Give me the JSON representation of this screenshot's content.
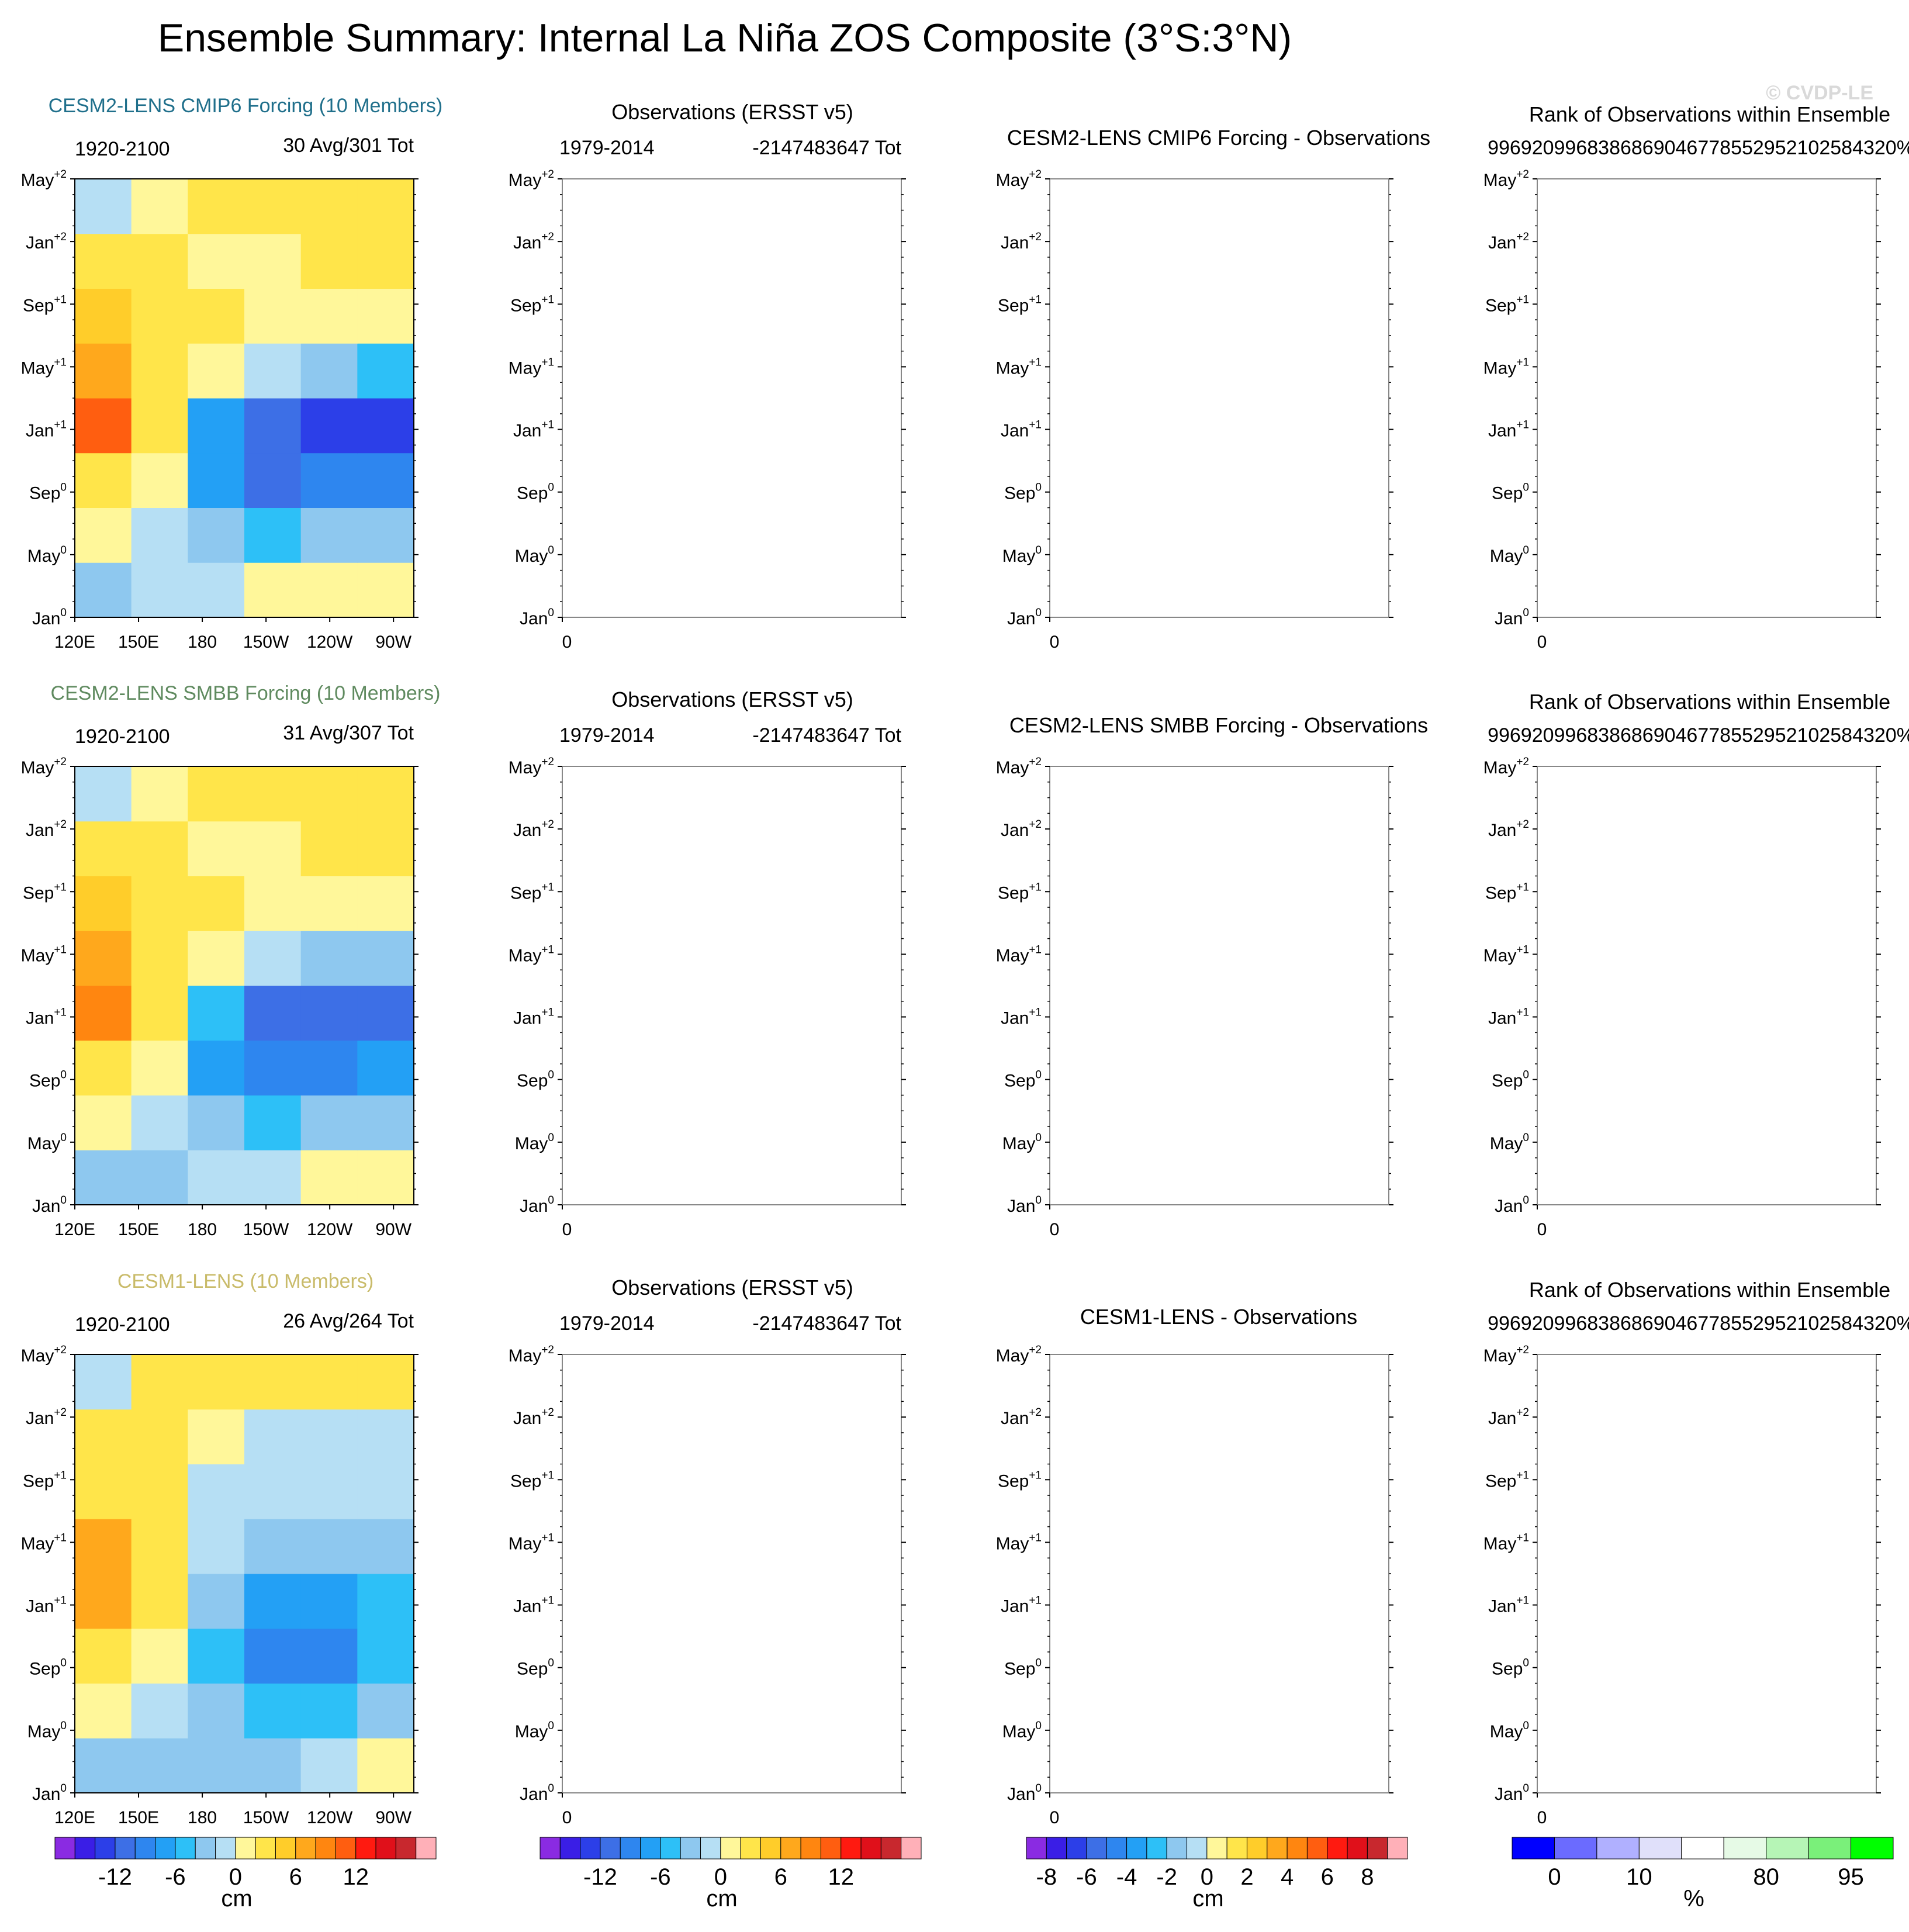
{
  "title": "Ensemble Summary: Internal La Niña ZOS Composite (3°S:3°N)",
  "watermark": "© CVDP-LE",
  "y_ticks": [
    {
      "m": "May",
      "s": "+2"
    },
    {
      "m": "Jan",
      "s": "+2"
    },
    {
      "m": "Sep",
      "s": "+1"
    },
    {
      "m": "May",
      "s": "+1"
    },
    {
      "m": "Jan",
      "s": "+1"
    },
    {
      "m": "Sep",
      "s": "0"
    },
    {
      "m": "May",
      "s": "0"
    },
    {
      "m": "Jan",
      "s": "0"
    }
  ],
  "x_ticks_model": [
    "120E",
    "150E",
    "180",
    "150W",
    "120W",
    "90W"
  ],
  "x_tick_obs": "0",
  "rows": [
    {
      "model": {
        "title": "CESM2-LENS CMIP6 Forcing (10 Members)",
        "color": "#1f6f8b",
        "years": "1920-2100",
        "count": "30 Avg/301 Tot"
      },
      "obs": {
        "title": "Observations (ERSST v5)",
        "years": "1979-2014",
        "count": "-2147483647 Tot"
      },
      "diff": {
        "title": "CESM2-LENS CMIP6 Forcing - Observations"
      },
      "rank": {
        "title": "Rank of Observations within Ensemble",
        "value": "9969209968386869046778552952102584320%"
      }
    },
    {
      "model": {
        "title": "CESM2-LENS SMBB Forcing (10 Members)",
        "color": "#5f8a5f",
        "years": "1920-2100",
        "count": "31 Avg/307 Tot"
      },
      "obs": {
        "title": "Observations (ERSST v5)",
        "years": "1979-2014",
        "count": "-2147483647 Tot"
      },
      "diff": {
        "title": "CESM2-LENS SMBB Forcing - Observations"
      },
      "rank": {
        "title": "Rank of Observations within Ensemble",
        "value": "9969209968386869046778552952102584320%"
      }
    },
    {
      "model": {
        "title": "CESM1-LENS (10 Members)",
        "color": "#c9bb6a",
        "years": "1920-2100",
        "count": "26 Avg/264 Tot"
      },
      "obs": {
        "title": "Observations (ERSST v5)",
        "years": "1979-2014",
        "count": "-2147483647 Tot"
      },
      "diff": {
        "title": "CESM1-LENS - Observations"
      },
      "rank": {
        "title": "Rank of Observations within Ensemble",
        "value": "9969209968386869046778552952102584320%"
      }
    }
  ],
  "colorbars": [
    {
      "colors": [
        "#8a2be2",
        "#3a1ee6",
        "#2c3fe8",
        "#3d6fe6",
        "#2e86ef",
        "#23a0f5",
        "#2dc0f7",
        "#8ec8ef",
        "#b6dff4",
        "#fff79a",
        "#ffe54a",
        "#ffcd2a",
        "#ffa81c",
        "#ff8610",
        "#ff5e10",
        "#ff1a10",
        "#e0101a",
        "#c8282e",
        "#ffb0b8"
      ],
      "labels": [
        "-12",
        "-6",
        "0",
        "6",
        "12"
      ],
      "label_idx": [
        2,
        5,
        8,
        11,
        14
      ],
      "units": "cm"
    },
    {
      "colors": [
        "#8a2be2",
        "#3a1ee6",
        "#2c3fe8",
        "#3d6fe6",
        "#2e86ef",
        "#23a0f5",
        "#2dc0f7",
        "#8ec8ef",
        "#b6dff4",
        "#fff79a",
        "#ffe54a",
        "#ffcd2a",
        "#ffa81c",
        "#ff8610",
        "#ff5e10",
        "#ff1a10",
        "#e0101a",
        "#c8282e",
        "#ffb0b8"
      ],
      "labels": [
        "-12",
        "-6",
        "0",
        "6",
        "12"
      ],
      "label_idx": [
        2,
        5,
        8,
        11,
        14
      ],
      "units": "cm"
    },
    {
      "colors": [
        "#8a2be2",
        "#3a1ee6",
        "#2c3fe8",
        "#3d6fe6",
        "#2e86ef",
        "#23a0f5",
        "#2dc0f7",
        "#8ec8ef",
        "#b6dff4",
        "#fff79a",
        "#ffe54a",
        "#ffcd2a",
        "#ffa81c",
        "#ff8610",
        "#ff5e10",
        "#ff1a10",
        "#e0101a",
        "#c8282e",
        "#ffb0b8"
      ],
      "labels": [
        "-8",
        "-6",
        "-4",
        "-2",
        "0",
        "2",
        "4",
        "6",
        "8"
      ],
      "label_idx": [
        0,
        2,
        4,
        6,
        8,
        10,
        12,
        14,
        16
      ],
      "units": "cm"
    },
    {
      "colors": [
        "#0000ff",
        "#6b6bff",
        "#b0b0ff",
        "#e0e0fa",
        "#ffffff",
        "#e6fae6",
        "#b6f5b6",
        "#7af07a",
        "#00ff00"
      ],
      "labels": [
        "0",
        "10",
        "80",
        "95"
      ],
      "label_idx": [
        0,
        2,
        5,
        7
      ],
      "units": "%"
    }
  ],
  "chart_data": [
    {
      "type": "heatmap",
      "title": "CESM2-LENS CMIP6 Forcing (10 Members)",
      "x": [
        "120E",
        "150E",
        "180",
        "150W",
        "120W",
        "90W"
      ],
      "y": [
        "Jan0",
        "May0",
        "Sep0",
        "Jan+1",
        "May+1",
        "Sep+1",
        "Jan+2",
        "May+2"
      ],
      "units": "cm",
      "values": [
        [
          -3,
          -2,
          -1,
          0,
          1,
          1
        ],
        [
          1,
          -2,
          -4,
          -5,
          -4,
          -3
        ],
        [
          3,
          1,
          -8,
          -11,
          -10,
          -9
        ],
        [
          10,
          2,
          -7,
          -12,
          -14,
          -13
        ],
        [
          6,
          3,
          0,
          -2,
          -4,
          -5
        ],
        [
          5,
          3,
          2,
          1,
          1,
          1
        ],
        [
          2,
          2,
          1,
          1,
          2,
          2
        ],
        [
          -1,
          1,
          2,
          3,
          3,
          3
        ]
      ]
    },
    {
      "type": "heatmap",
      "title": "CESM2-LENS SMBB Forcing (10 Members)",
      "x": [
        "120E",
        "150E",
        "180",
        "150W",
        "120W",
        "90W"
      ],
      "y": [
        "Jan0",
        "May0",
        "Sep0",
        "Jan+1",
        "May+1",
        "Sep+1",
        "Jan+2",
        "May+2"
      ],
      "units": "cm",
      "values": [
        [
          -3,
          -3,
          -2,
          -1,
          0,
          1
        ],
        [
          1,
          -1,
          -3,
          -5,
          -4,
          -3
        ],
        [
          3,
          1,
          -7,
          -10,
          -10,
          -8
        ],
        [
          9,
          2,
          -6,
          -11,
          -12,
          -11
        ],
        [
          6,
          3,
          0,
          -2,
          -4,
          -4
        ],
        [
          4,
          3,
          2,
          1,
          1,
          1
        ],
        [
          2,
          2,
          1,
          1,
          2,
          2
        ],
        [
          -1,
          1,
          2,
          3,
          3,
          3
        ]
      ]
    },
    {
      "type": "heatmap",
      "title": "CESM1-LENS (10 Members)",
      "x": [
        "120E",
        "150E",
        "180",
        "150W",
        "120W",
        "90W"
      ],
      "y": [
        "Jan0",
        "May0",
        "Sep0",
        "Jan+1",
        "May+1",
        "Sep+1",
        "Jan+2",
        "May+2"
      ],
      "units": "cm",
      "values": [
        [
          -3,
          -3,
          -3,
          -3,
          -2,
          1
        ],
        [
          1,
          -2,
          -3,
          -5,
          -5,
          -3
        ],
        [
          3,
          1,
          -6,
          -10,
          -9,
          -6
        ],
        [
          7,
          2,
          -4,
          -7,
          -7,
          -5
        ],
        [
          6,
          3,
          -1,
          -3,
          -3,
          -3
        ],
        [
          3,
          2,
          -1,
          -2,
          -2,
          -1
        ],
        [
          3,
          2,
          1,
          -1,
          -1,
          -1
        ],
        [
          -1,
          2,
          2,
          2,
          2,
          2
        ]
      ]
    }
  ]
}
